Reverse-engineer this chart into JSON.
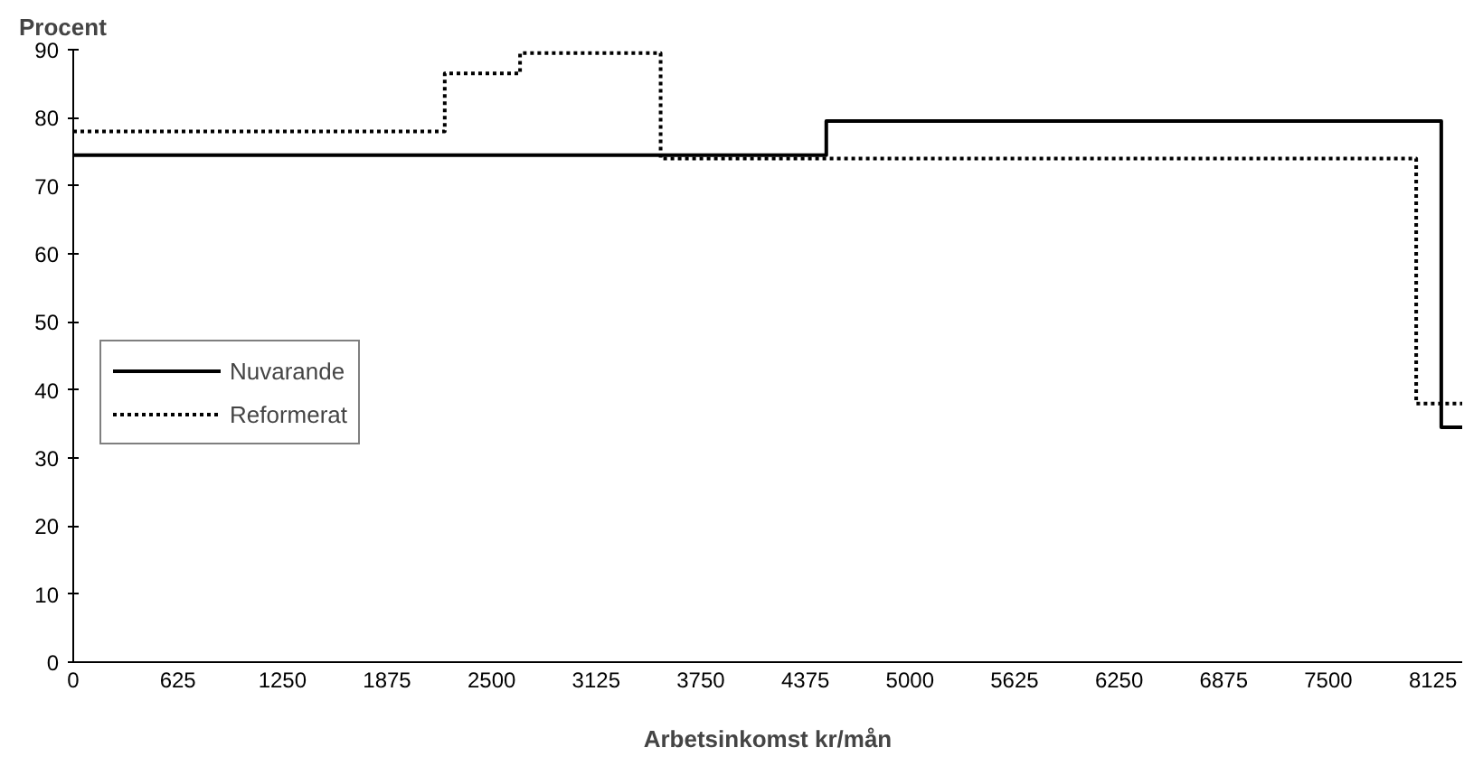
{
  "chart_data": {
    "type": "step",
    "ylabel": "Procent",
    "xlabel": "Arbetsinkomst kr/mån",
    "series": [
      {
        "name": "Nuvarande",
        "color": "#000000",
        "line_style": "solid",
        "x": [
          0,
          4500,
          8175,
          8300
        ],
        "values": [
          74.5,
          79.5,
          34.5,
          34.5
        ]
      },
      {
        "name": "Reformerat",
        "color": "#000000",
        "line_style": "dotted",
        "x": [
          0,
          2220,
          2670,
          3510,
          8025,
          8300
        ],
        "values": [
          78,
          86.5,
          89.5,
          74,
          38,
          38
        ]
      }
    ],
    "xlim": [
      0,
      8300
    ],
    "xticks": [
      0,
      625,
      1250,
      1875,
      2500,
      3125,
      3750,
      4375,
      5000,
      5625,
      6250,
      6875,
      7500,
      8125
    ],
    "ylim": [
      0,
      90
    ],
    "yticks": [
      0,
      10,
      20,
      30,
      40,
      50,
      60,
      70,
      80,
      90
    ],
    "grid": false,
    "legend": "left",
    "marker": "none"
  }
}
